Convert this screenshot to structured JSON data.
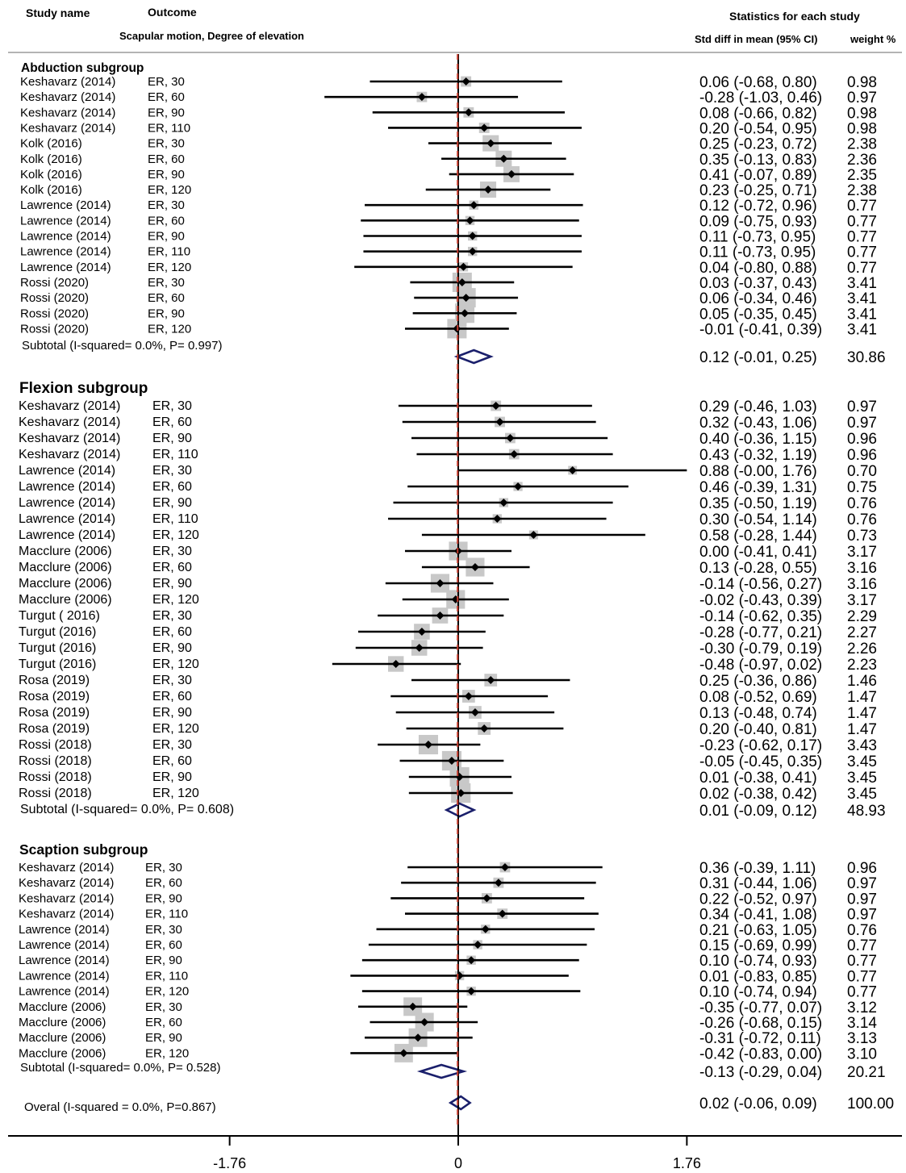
{
  "chart_data": {
    "type": "forest",
    "headers": {
      "study_name": "Study name",
      "outcome": "Outcome",
      "outcome_desc": "Scapular motion, Degree of elevation",
      "stats_title": "Statistics for each study",
      "effect_col": "Std diff in mean (95% CI)",
      "weight_col": "weight %"
    },
    "x_axis": {
      "range": [
        -2.2,
        1.9
      ],
      "ticks": [
        -1.76,
        0,
        1.76
      ],
      "tick_labels": [
        "-1.76",
        "0",
        "1.76"
      ]
    },
    "groups": [
      {
        "name": "Abduction subgroup",
        "rows": [
          {
            "study": "Keshavarz (2014)",
            "outcome": "ER, 30",
            "est": 0.06,
            "lo": -0.68,
            "hi": 0.8,
            "ci_text": "0.06 (-0.68, 0.80)",
            "weight": "0.98"
          },
          {
            "study": "Keshavarz (2014)",
            "outcome": "ER, 60",
            "est": -0.28,
            "lo": -1.03,
            "hi": 0.46,
            "ci_text": "-0.28 (-1.03, 0.46)",
            "weight": "0.97"
          },
          {
            "study": "Keshavarz (2014)",
            "outcome": "ER, 90",
            "est": 0.08,
            "lo": -0.66,
            "hi": 0.82,
            "ci_text": "0.08 (-0.66, 0.82)",
            "weight": "0.98"
          },
          {
            "study": "Keshavarz (2014)",
            "outcome": "ER, 110",
            "est": 0.2,
            "lo": -0.54,
            "hi": 0.95,
            "ci_text": "0.20 (-0.54, 0.95)",
            "weight": "0.98"
          },
          {
            "study": "Kolk (2016)",
            "outcome": "ER, 30",
            "est": 0.25,
            "lo": -0.23,
            "hi": 0.72,
            "ci_text": "0.25 (-0.23, 0.72)",
            "weight": "2.38"
          },
          {
            "study": "Kolk (2016)",
            "outcome": "ER, 60",
            "est": 0.35,
            "lo": -0.13,
            "hi": 0.83,
            "ci_text": "0.35 (-0.13, 0.83)",
            "weight": "2.36"
          },
          {
            "study": "Kolk (2016)",
            "outcome": "ER, 90",
            "est": 0.41,
            "lo": -0.07,
            "hi": 0.89,
            "ci_text": "0.41 (-0.07, 0.89)",
            "weight": "2.35"
          },
          {
            "study": "Kolk (2016)",
            "outcome": "ER, 120",
            "est": 0.23,
            "lo": -0.25,
            "hi": 0.71,
            "ci_text": "0.23 (-0.25, 0.71)",
            "weight": "2.38"
          },
          {
            "study": "Lawrence (2014)",
            "outcome": "ER, 30",
            "est": 0.12,
            "lo": -0.72,
            "hi": 0.96,
            "ci_text": "0.12 (-0.72, 0.96)",
            "weight": "0.77"
          },
          {
            "study": "Lawrence (2014)",
            "outcome": "ER, 60",
            "est": 0.09,
            "lo": -0.75,
            "hi": 0.93,
            "ci_text": "0.09 (-0.75, 0.93)",
            "weight": "0.77"
          },
          {
            "study": "Lawrence (2014)",
            "outcome": "ER, 90",
            "est": 0.11,
            "lo": -0.73,
            "hi": 0.95,
            "ci_text": "0.11 (-0.73, 0.95)",
            "weight": "0.77"
          },
          {
            "study": "Lawrence (2014)",
            "outcome": "ER, 110",
            "est": 0.11,
            "lo": -0.73,
            "hi": 0.95,
            "ci_text": "0.11 (-0.73, 0.95)",
            "weight": "0.77"
          },
          {
            "study": "Lawrence (2014)",
            "outcome": "ER, 120",
            "est": 0.04,
            "lo": -0.8,
            "hi": 0.88,
            "ci_text": "0.04 (-0.80, 0.88)",
            "weight": "0.77"
          },
          {
            "study": "Rossi (2020)",
            "outcome": "ER, 30",
            "est": 0.03,
            "lo": -0.37,
            "hi": 0.43,
            "ci_text": "0.03 (-0.37, 0.43)",
            "weight": "3.41"
          },
          {
            "study": "Rossi (2020)",
            "outcome": "ER, 60",
            "est": 0.06,
            "lo": -0.34,
            "hi": 0.46,
            "ci_text": "0.06 (-0.34, 0.46)",
            "weight": "3.41"
          },
          {
            "study": "Rossi (2020)",
            "outcome": "ER, 90",
            "est": 0.05,
            "lo": -0.35,
            "hi": 0.45,
            "ci_text": "0.05 (-0.35, 0.45)",
            "weight": "3.41"
          },
          {
            "study": "Rossi (2020)",
            "outcome": "ER, 120",
            "est": -0.01,
            "lo": -0.41,
            "hi": 0.39,
            "ci_text": "-0.01 (-0.41, 0.39)",
            "weight": "3.41"
          }
        ],
        "subtotal": {
          "label": "Subtotal (I-squared= 0.0%, P= 0.997)",
          "est": 0.12,
          "lo": -0.01,
          "hi": 0.25,
          "ci_text": "0.12 (-0.01, 0.25)",
          "weight": "30.86"
        }
      },
      {
        "name": "Flexion subgroup",
        "rows": [
          {
            "study": "Keshavarz (2014)",
            "outcome": "ER, 30",
            "est": 0.29,
            "lo": -0.46,
            "hi": 1.03,
            "ci_text": "0.29 (-0.46, 1.03)",
            "weight": "0.97"
          },
          {
            "study": "Keshavarz (2014)",
            "outcome": "ER, 60",
            "est": 0.32,
            "lo": -0.43,
            "hi": 1.06,
            "ci_text": "0.32 (-0.43, 1.06)",
            "weight": "0.97"
          },
          {
            "study": "Keshavarz (2014)",
            "outcome": "ER, 90",
            "est": 0.4,
            "lo": -0.36,
            "hi": 1.15,
            "ci_text": "0.40 (-0.36, 1.15)",
            "weight": "0.96"
          },
          {
            "study": "Keshavarz (2014)",
            "outcome": "ER, 110",
            "est": 0.43,
            "lo": -0.32,
            "hi": 1.19,
            "ci_text": "0.43 (-0.32, 1.19)",
            "weight": "0.96"
          },
          {
            "study": "Lawrence (2014)",
            "outcome": "ER, 30",
            "est": 0.88,
            "lo": -0.0,
            "hi": 1.76,
            "ci_text": "0.88 (-0.00, 1.76)",
            "weight": "0.70"
          },
          {
            "study": "Lawrence (2014)",
            "outcome": "ER, 60",
            "est": 0.46,
            "lo": -0.39,
            "hi": 1.31,
            "ci_text": "0.46 (-0.39, 1.31)",
            "weight": "0.75"
          },
          {
            "study": "Lawrence (2014)",
            "outcome": "ER, 90",
            "est": 0.35,
            "lo": -0.5,
            "hi": 1.19,
            "ci_text": "0.35 (-0.50, 1.19)",
            "weight": "0.76"
          },
          {
            "study": "Lawrence (2014)",
            "outcome": "ER, 110",
            "est": 0.3,
            "lo": -0.54,
            "hi": 1.14,
            "ci_text": "0.30 (-0.54, 1.14)",
            "weight": "0.76"
          },
          {
            "study": "Lawrence (2014)",
            "outcome": "ER, 120",
            "est": 0.58,
            "lo": -0.28,
            "hi": 1.44,
            "ci_text": "0.58 (-0.28, 1.44)",
            "weight": "0.73"
          },
          {
            "study": "Macclure (2006)",
            "outcome": "ER, 30",
            "est": 0.0,
            "lo": -0.41,
            "hi": 0.41,
            "ci_text": "0.00 (-0.41, 0.41)",
            "weight": "3.17"
          },
          {
            "study": "Macclure (2006)",
            "outcome": "ER, 60",
            "est": 0.13,
            "lo": -0.28,
            "hi": 0.55,
            "ci_text": "0.13 (-0.28, 0.55)",
            "weight": "3.16"
          },
          {
            "study": "Macclure (2006)",
            "outcome": "ER, 90",
            "est": -0.14,
            "lo": -0.56,
            "hi": 0.27,
            "ci_text": "-0.14 (-0.56, 0.27)",
            "weight": "3.16"
          },
          {
            "study": "Macclure (2006)",
            "outcome": "ER, 120",
            "est": -0.02,
            "lo": -0.43,
            "hi": 0.39,
            "ci_text": "-0.02 (-0.43, 0.39)",
            "weight": "3.17"
          },
          {
            "study": "Turgut ( 2016)",
            "outcome": "ER, 30",
            "est": -0.14,
            "lo": -0.62,
            "hi": 0.35,
            "ci_text": "-0.14 (-0.62, 0.35)",
            "weight": "2.29"
          },
          {
            "study": "Turgut (2016)",
            "outcome": "ER, 60",
            "est": -0.28,
            "lo": -0.77,
            "hi": 0.21,
            "ci_text": "-0.28 (-0.77, 0.21)",
            "weight": "2.27"
          },
          {
            "study": "Turgut (2016)",
            "outcome": "ER, 90",
            "est": -0.3,
            "lo": -0.79,
            "hi": 0.19,
            "ci_text": "-0.30 (-0.79, 0.19)",
            "weight": "2.26"
          },
          {
            "study": "Turgut (2016)",
            "outcome": "ER, 120",
            "est": -0.48,
            "lo": -0.97,
            "hi": 0.02,
            "ci_text": "-0.48 (-0.97, 0.02)",
            "weight": "2.23"
          },
          {
            "study": "Rosa (2019)",
            "outcome": "ER, 30",
            "est": 0.25,
            "lo": -0.36,
            "hi": 0.86,
            "ci_text": "0.25 (-0.36, 0.86)",
            "weight": "1.46"
          },
          {
            "study": "Rosa (2019)",
            "outcome": "ER, 60",
            "est": 0.08,
            "lo": -0.52,
            "hi": 0.69,
            "ci_text": "0.08 (-0.52, 0.69)",
            "weight": "1.47"
          },
          {
            "study": "Rosa (2019)",
            "outcome": "ER, 90",
            "est": 0.13,
            "lo": -0.48,
            "hi": 0.74,
            "ci_text": "0.13 (-0.48, 0.74)",
            "weight": "1.47"
          },
          {
            "study": "Rosa (2019)",
            "outcome": "ER, 120",
            "est": 0.2,
            "lo": -0.4,
            "hi": 0.81,
            "ci_text": "0.20 (-0.40, 0.81)",
            "weight": "1.47"
          },
          {
            "study": "Rossi (2018)",
            "outcome": "ER, 30",
            "est": -0.23,
            "lo": -0.62,
            "hi": 0.17,
            "ci_text": "-0.23 (-0.62, 0.17)",
            "weight": "3.43"
          },
          {
            "study": "Rossi (2018)",
            "outcome": "ER, 60",
            "est": -0.05,
            "lo": -0.45,
            "hi": 0.35,
            "ci_text": "-0.05 (-0.45, 0.35)",
            "weight": "3.45"
          },
          {
            "study": "Rossi (2018)",
            "outcome": "ER, 90",
            "est": 0.01,
            "lo": -0.38,
            "hi": 0.41,
            "ci_text": "0.01 (-0.38, 0.41)",
            "weight": "3.45"
          },
          {
            "study": "Rossi (2018)",
            "outcome": "ER, 120",
            "est": 0.02,
            "lo": -0.38,
            "hi": 0.42,
            "ci_text": "0.02 (-0.38, 0.42)",
            "weight": "3.45"
          }
        ],
        "subtotal": {
          "label": "Subtotal (I-squared= 0.0%, P= 0.608)",
          "est": 0.01,
          "lo": -0.09,
          "hi": 0.12,
          "ci_text": "0.01 (-0.09, 0.12)",
          "weight": "48.93"
        }
      },
      {
        "name": "Scaption subgroup",
        "rows": [
          {
            "study": "Keshavarz (2014)",
            "outcome": "ER, 30",
            "est": 0.36,
            "lo": -0.39,
            "hi": 1.11,
            "ci_text": "0.36 (-0.39, 1.11)",
            "weight": "0.96"
          },
          {
            "study": "Keshavarz (2014)",
            "outcome": "ER, 60",
            "est": 0.31,
            "lo": -0.44,
            "hi": 1.06,
            "ci_text": "0.31 (-0.44, 1.06)",
            "weight": "0.97"
          },
          {
            "study": "Keshavarz (2014)",
            "outcome": "ER, 90",
            "est": 0.22,
            "lo": -0.52,
            "hi": 0.97,
            "ci_text": "0.22 (-0.52, 0.97)",
            "weight": "0.97"
          },
          {
            "study": "Keshavarz (2014)",
            "outcome": "ER, 110",
            "est": 0.34,
            "lo": -0.41,
            "hi": 1.08,
            "ci_text": "0.34 (-0.41, 1.08)",
            "weight": "0.97"
          },
          {
            "study": "Lawrence (2014)",
            "outcome": "ER, 30",
            "est": 0.21,
            "lo": -0.63,
            "hi": 1.05,
            "ci_text": "0.21 (-0.63, 1.05)",
            "weight": "0.76"
          },
          {
            "study": "Lawrence (2014)",
            "outcome": "ER, 60",
            "est": 0.15,
            "lo": -0.69,
            "hi": 0.99,
            "ci_text": "0.15 (-0.69, 0.99)",
            "weight": "0.77"
          },
          {
            "study": "Lawrence (2014)",
            "outcome": "ER, 90",
            "est": 0.1,
            "lo": -0.74,
            "hi": 0.93,
            "ci_text": "0.10 (-0.74, 0.93)",
            "weight": "0.77"
          },
          {
            "study": "Lawrence (2014)",
            "outcome": "ER, 110",
            "est": 0.01,
            "lo": -0.83,
            "hi": 0.85,
            "ci_text": "0.01 (-0.83, 0.85)",
            "weight": "0.77"
          },
          {
            "study": "Lawrence (2014)",
            "outcome": "ER, 120",
            "est": 0.1,
            "lo": -0.74,
            "hi": 0.94,
            "ci_text": "0.10 (-0.74, 0.94)",
            "weight": "0.77"
          },
          {
            "study": "Macclure (2006)",
            "outcome": "ER, 30",
            "est": -0.35,
            "lo": -0.77,
            "hi": 0.07,
            "ci_text": "-0.35 (-0.77, 0.07)",
            "weight": "3.12"
          },
          {
            "study": "Macclure (2006)",
            "outcome": "ER, 60",
            "est": -0.26,
            "lo": -0.68,
            "hi": 0.15,
            "ci_text": "-0.26 (-0.68, 0.15)",
            "weight": "3.14"
          },
          {
            "study": "Macclure (2006)",
            "outcome": "ER, 90",
            "est": -0.31,
            "lo": -0.72,
            "hi": 0.11,
            "ci_text": "-0.31 (-0.72, 0.11)",
            "weight": "3.13"
          },
          {
            "study": "Macclure (2006)",
            "outcome": "ER, 120",
            "est": -0.42,
            "lo": -0.83,
            "hi": 0.0,
            "ci_text": "-0.42 (-0.83, 0.00)",
            "weight": "3.10"
          }
        ],
        "subtotal": {
          "label": "Subtotal (I-squared= 0.0%, P= 0.528)",
          "est": -0.13,
          "lo": -0.29,
          "hi": 0.04,
          "ci_text": "-0.13 (-0.29, 0.04)",
          "weight": "20.21"
        }
      }
    ],
    "overall": {
      "label": "Overal (I-squared = 0.0%, P=0.867)",
      "est": 0.02,
      "lo": -0.06,
      "hi": 0.09,
      "ci_text": "0.02 (-0.06, 0.09)",
      "weight": "100.00"
    },
    "colors": {
      "ci_line": "#000000",
      "box": "#c8c8c8",
      "diamond": "#1a1f6b",
      "null_line": "#000000",
      "overall_line": "#c0392b",
      "rule": "#b4b4b4"
    }
  }
}
